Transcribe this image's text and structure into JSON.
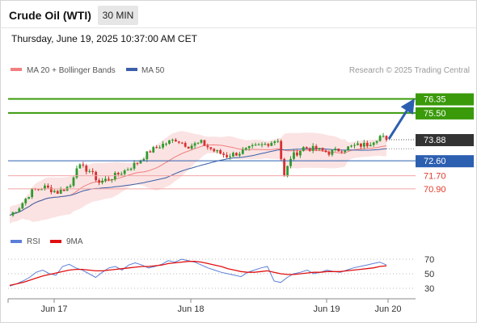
{
  "header": {
    "title": "Crude Oil (WTI)",
    "interval": "30 MIN",
    "datetime": "Thursday, June 19, 2025 10:37:00 AM CET"
  },
  "credit": "Research © 2025 Trading Central",
  "colors": {
    "target": "#3a9a0a",
    "support": "#f2a4a4",
    "support_text": "#e03a2a",
    "pivot": "#2c5fb0",
    "price_box": "#333333",
    "bollinger_fill": "#fbe3e3",
    "ma20": "#f08080",
    "ma50": "#3b5fa8",
    "candle_up": "#2e9a2e",
    "candle_down": "#d93030",
    "rsi": "#5b7fd8",
    "rsi_ma": "#e01010",
    "arrow": "#2c5fb0"
  },
  "chart_data": [
    {
      "type": "candlestick",
      "title": "Crude Oil (WTI)",
      "timeframe": "30 MIN",
      "x_labels": [
        "Jun 17",
        "Jun 18",
        "Jun 19",
        "Jun 20"
      ],
      "legend": [
        {
          "name": "MA 20 + Bollinger Bands",
          "color": "#f08080"
        },
        {
          "name": "MA 50",
          "color": "#3b5fa8"
        }
      ],
      "ylim": [
        68.4,
        77.6
      ],
      "levels": [
        {
          "value": 76.35,
          "label": "76.35",
          "role": "target"
        },
        {
          "value": 75.5,
          "label": "75.50",
          "role": "target"
        },
        {
          "value": 73.88,
          "label": "73.88",
          "role": "current-price"
        },
        {
          "value": 72.6,
          "label": "72.60",
          "role": "pivot"
        },
        {
          "value": 71.7,
          "label": "71.70",
          "role": "support"
        },
        {
          "value": 70.9,
          "label": "70.90",
          "role": "support"
        }
      ],
      "price_path": [
        [
          0,
          69.3
        ],
        [
          3,
          69.8
        ],
        [
          7,
          70.8
        ],
        [
          11,
          71.0
        ],
        [
          15,
          70.7
        ],
        [
          19,
          71.1
        ],
        [
          21,
          72.3
        ],
        [
          25,
          72.0
        ],
        [
          28,
          71.3
        ],
        [
          32,
          71.6
        ],
        [
          36,
          72.0
        ],
        [
          40,
          72.5
        ],
        [
          44,
          73.2
        ],
        [
          48,
          73.6
        ],
        [
          52,
          73.9
        ],
        [
          56,
          73.5
        ],
        [
          60,
          73.7
        ],
        [
          64,
          73.2
        ],
        [
          68,
          72.9
        ],
        [
          72,
          73.1
        ],
        [
          76,
          73.4
        ],
        [
          80,
          73.6
        ],
        [
          84,
          73.9
        ],
        [
          86,
          71.6
        ],
        [
          88,
          72.8
        ],
        [
          92,
          73.4
        ],
        [
          96,
          73.3
        ],
        [
          100,
          73.1
        ],
        [
          104,
          73.3
        ],
        [
          108,
          73.5
        ],
        [
          112,
          73.6
        ],
        [
          116,
          74.1
        ],
        [
          118,
          73.9
        ]
      ],
      "arrow": {
        "from": [
          118,
          73.88
        ],
        "to": [
          127,
          76.35
        ]
      }
    },
    {
      "type": "line",
      "title": "RSI",
      "legend": [
        {
          "name": "RSI",
          "color": "#5b7fd8"
        },
        {
          "name": "9MA",
          "color": "#e01010"
        }
      ],
      "ylim": [
        20,
        80
      ],
      "y_ticks": [
        70,
        50,
        30
      ],
      "series": [
        {
          "name": "RSI",
          "values": [
            33,
            36,
            40,
            45,
            52,
            55,
            50,
            48,
            60,
            63,
            58,
            55,
            50,
            45,
            52,
            58,
            60,
            55,
            62,
            65,
            62,
            58,
            60,
            63,
            68,
            66,
            70,
            68,
            66,
            62,
            58,
            55,
            52,
            50,
            48,
            46,
            52,
            55,
            58,
            60,
            40,
            38,
            45,
            50,
            52,
            55,
            50,
            52,
            55,
            53,
            52,
            55,
            58,
            60,
            62,
            64,
            66,
            62
          ]
        },
        {
          "name": "9MA",
          "values": [
            34,
            36,
            38,
            41,
            44,
            47,
            49,
            51,
            53,
            55,
            56,
            56,
            55,
            54,
            54,
            55,
            56,
            57,
            58,
            59,
            60,
            60,
            61,
            62,
            64,
            65,
            66,
            67,
            67,
            66,
            64,
            62,
            60,
            57,
            55,
            53,
            52,
            52,
            53,
            54,
            52,
            50,
            49,
            49,
            50,
            51,
            52,
            52,
            53,
            53,
            53,
            54,
            55,
            56,
            57,
            58,
            60,
            61
          ]
        }
      ]
    }
  ]
}
